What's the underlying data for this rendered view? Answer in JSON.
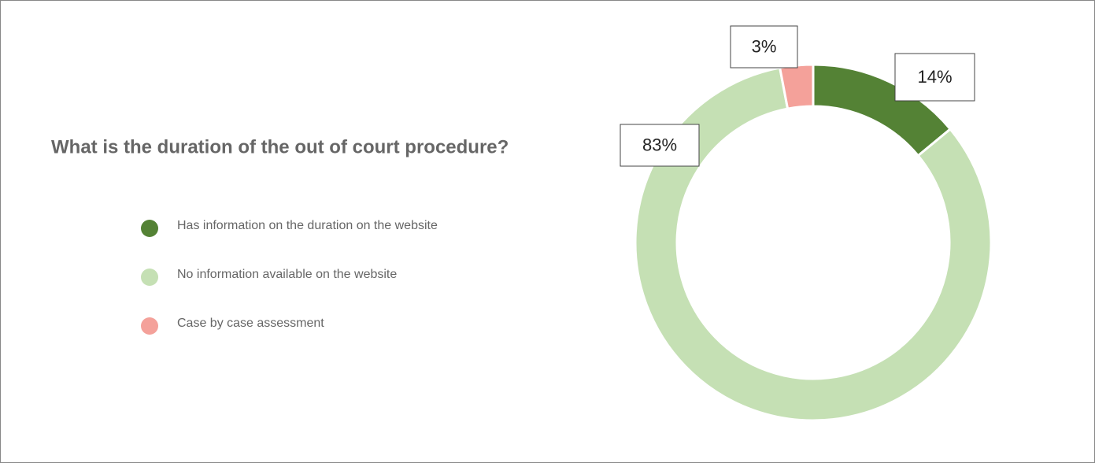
{
  "chart_data": {
    "type": "donut",
    "title": "What is the duration of the out of court procedure?",
    "categories": [
      "Has information on the duration on the website",
      "No information available on the website",
      "Case by case assessment"
    ],
    "values": [
      14,
      83,
      3
    ],
    "value_labels": [
      "14%",
      "83%",
      "3%"
    ],
    "colors": [
      "#548235",
      "#c5e0b4",
      "#f4a19a"
    ],
    "legend": "left"
  }
}
